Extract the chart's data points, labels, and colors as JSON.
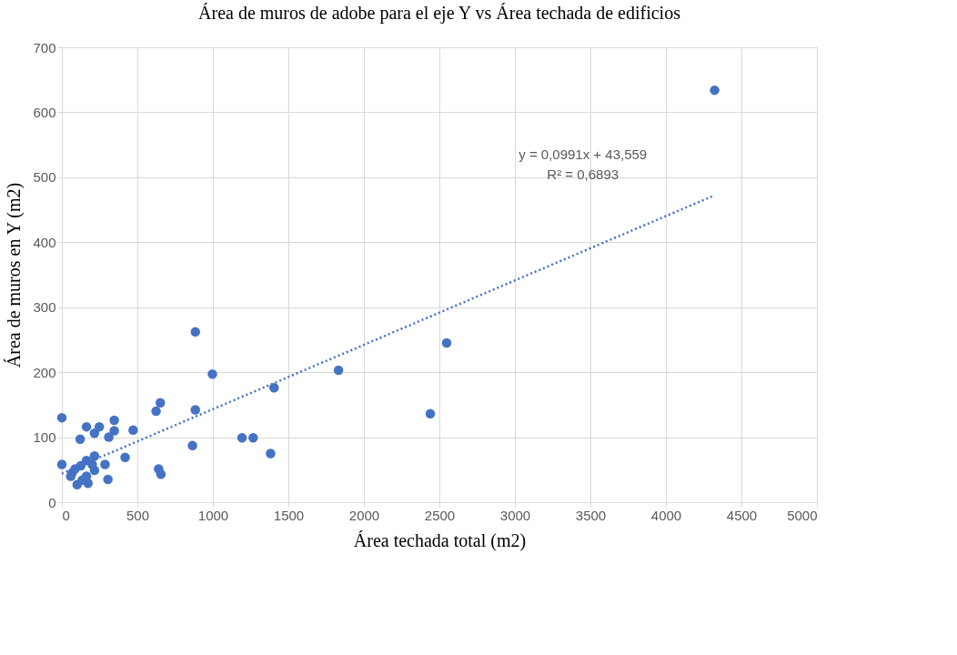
{
  "chart_data": {
    "type": "scatter",
    "title": "Área de muros de adobe para el eje Y vs Área techada de edificios",
    "xlabel": "Área techada total (m2)",
    "ylabel": "Área de muros en Y (m2)",
    "xlim": [
      0,
      5000
    ],
    "xticks": [
      0,
      500,
      1000,
      1500,
      2000,
      2500,
      3000,
      3500,
      4000,
      4500,
      5000
    ],
    "ylim": [
      0,
      700
    ],
    "yticks": [
      0,
      100,
      200,
      300,
      400,
      500,
      600,
      700
    ],
    "grid": true,
    "series": [
      {
        "color": "#4472c4",
        "marker": "circle",
        "x": [
          0,
          0,
          121,
          163,
          248,
          216,
          347,
          347,
          311,
          472,
          419,
          286,
          305,
          173,
          101,
          59,
          87,
          125,
          163,
          216,
          216,
          163,
          135,
          201,
          68,
          884,
          997,
          624,
          652,
          884,
          865,
          641,
          656,
          1193,
          1267,
          1382,
          1405,
          1832,
          2440,
          2548,
          4323
        ],
        "values": [
          130,
          58,
          97,
          116,
          116,
          106,
          126,
          110,
          100,
          111,
          69,
          58,
          35,
          29,
          27,
          40,
          51,
          56,
          64,
          71,
          49,
          40,
          34,
          58,
          45,
          262,
          197,
          140,
          153,
          142,
          87,
          51,
          43,
          99,
          99,
          75,
          176,
          203,
          136,
          245,
          634
        ]
      },
      {
        "type": "line",
        "color": "#4472c4",
        "line_style": "dotted",
        "x": [
          0,
          4310
        ],
        "values": [
          44,
          471
        ]
      }
    ],
    "annotations": [
      "y = 0,0991x + 43,559",
      "R² = 0,6893"
    ]
  }
}
